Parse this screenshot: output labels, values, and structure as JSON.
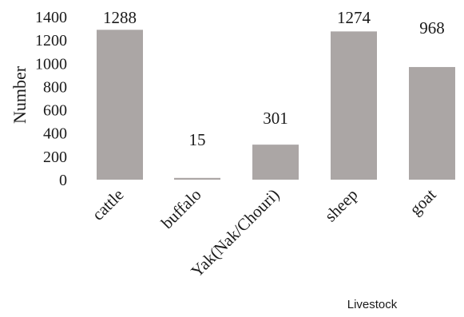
{
  "chart_data": {
    "type": "bar",
    "categories": [
      "cattle",
      "buffalo",
      "Yak(Nak/Chouri)",
      "sheep",
      "goat"
    ],
    "values": [
      1288,
      15,
      301,
      1274,
      968
    ],
    "data_labels": [
      "1288",
      "15",
      "301",
      "1274",
      "968"
    ],
    "ylabel": "Number",
    "xlabel": "Livestock",
    "ylim": [
      0,
      1400
    ],
    "yticks": [
      0,
      200,
      400,
      600,
      800,
      1000,
      1200,
      1400
    ],
    "grid": false,
    "bar_color": "#aba6a5"
  }
}
